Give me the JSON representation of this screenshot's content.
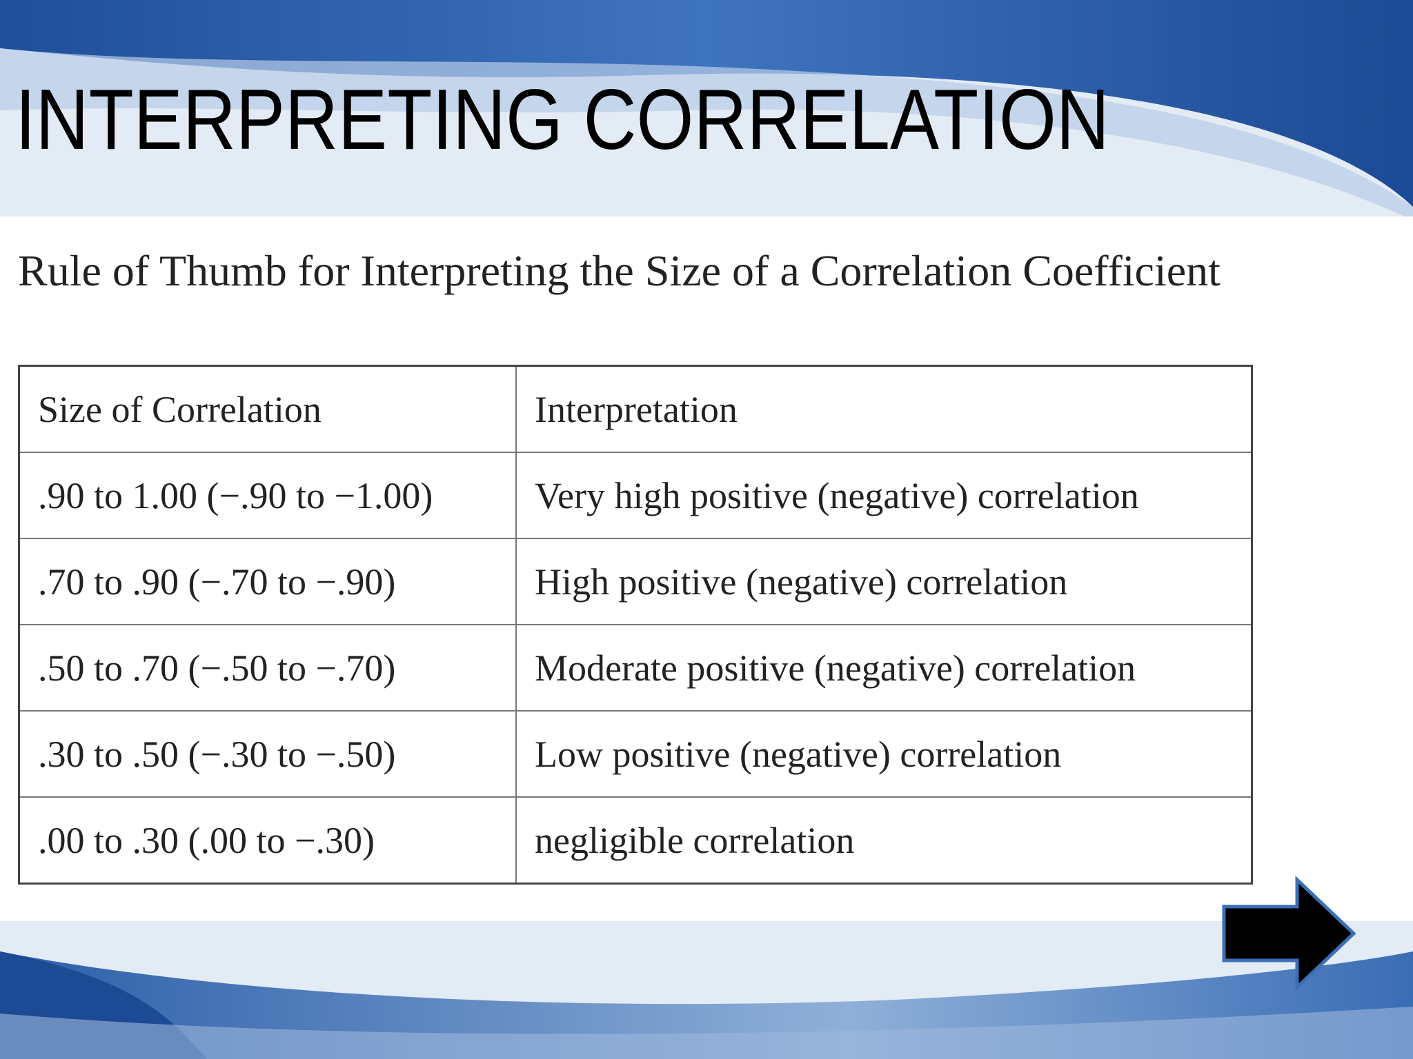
{
  "header": {
    "title": "INTERPRETING CORRELATION"
  },
  "subtitle": "Rule of Thumb for Interpreting the Size of a Correlation Coefficient",
  "table": {
    "columns": [
      "Size of Correlation",
      "Interpretation"
    ],
    "rows": [
      [
        ".90 to 1.00 (−.90 to −1.00)",
        "Very high positive (negative) correlation"
      ],
      [
        ".70 to .90 (−.70 to −.90)",
        "High positive (negative) correlation"
      ],
      [
        ".50 to .70 (−.50 to −.70)",
        "Moderate positive (negative) correlation"
      ],
      [
        ".30 to .50 (−.30 to −.50)",
        "Low positive (negative) correlation"
      ],
      [
        ".00 to .30 (.00 to −.30)",
        "negligible correlation"
      ]
    ]
  }
}
